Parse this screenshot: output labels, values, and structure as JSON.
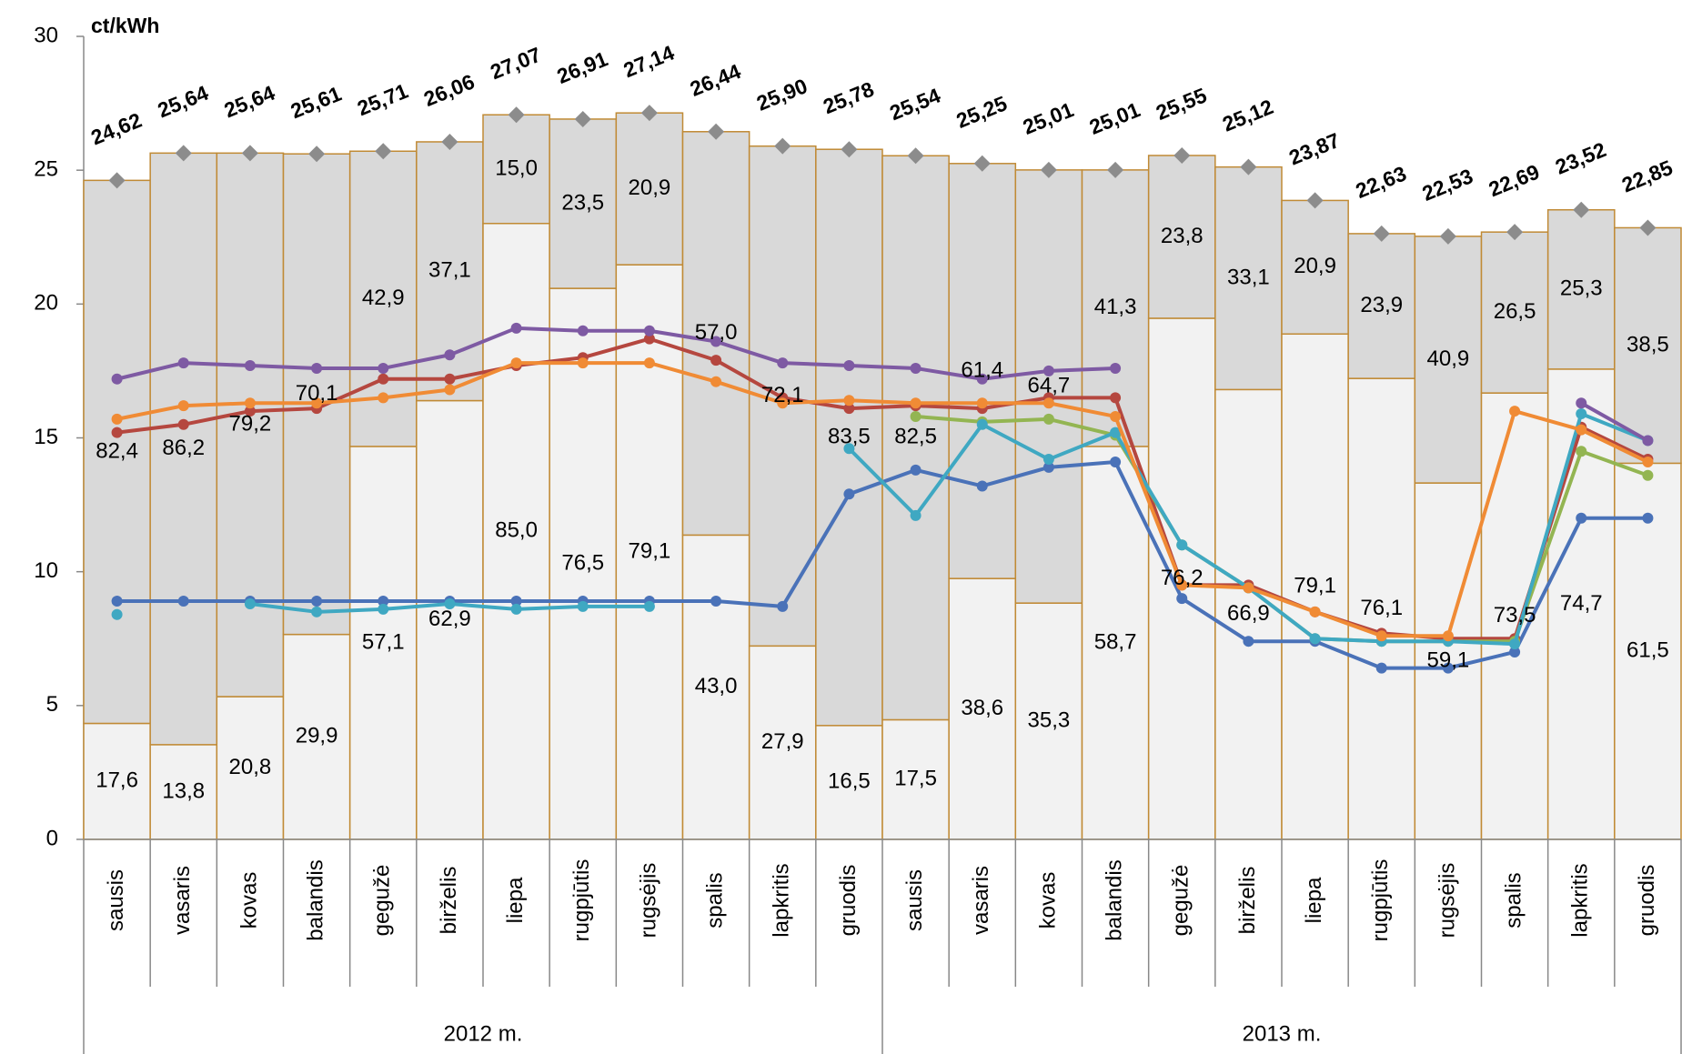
{
  "chart_data": {
    "type": "bar_line",
    "y_label": "ct/kWh",
    "ylim": [
      0,
      30
    ],
    "yticks": [
      0,
      5,
      10,
      15,
      20,
      25,
      30
    ],
    "categories": [
      "sausis",
      "vasaris",
      "kovas",
      "balandis",
      "gegužė",
      "birželis",
      "liepa",
      "rugpjūtis",
      "rugsėjis",
      "spalis",
      "lapkritis",
      "gruodis",
      "sausis",
      "vasaris",
      "kovas",
      "balandis",
      "gegužė",
      "birželis",
      "liepa",
      "rugpjūtis",
      "rugsėjis",
      "spalis",
      "lapkritis",
      "gruodis"
    ],
    "groups": [
      "2012 m.",
      "2013 m."
    ],
    "bars": {
      "edge_color": "#c08a35",
      "totals": {
        "color": "#8c8c8c",
        "values": [
          24.62,
          25.64,
          25.64,
          25.61,
          25.71,
          26.06,
          27.07,
          26.91,
          27.14,
          26.44,
          25.9,
          25.78,
          25.54,
          25.25,
          25.01,
          25.01,
          25.55,
          25.12,
          23.87,
          22.63,
          22.53,
          22.69,
          23.52,
          22.85
        ],
        "value_labels": [
          "24,62",
          "25,64",
          "25,64",
          "25,61",
          "25,71",
          "26,06",
          "27,07",
          "26,91",
          "27,14",
          "26,44",
          "25,90",
          "25,78",
          "25,54",
          "25,25",
          "25,01",
          "25,01",
          "25,55",
          "25,12",
          "23,87",
          "22,63",
          "22,53",
          "22,69",
          "23,52",
          "22,85"
        ]
      },
      "lower": {
        "color": "#f2f2f2",
        "values": [
          17.6,
          13.8,
          20.8,
          29.9,
          57.1,
          62.9,
          85.0,
          76.5,
          79.1,
          43.0,
          27.9,
          16.5,
          17.5,
          38.6,
          35.3,
          58.7,
          76.2,
          66.9,
          79.1,
          76.1,
          59.1,
          73.5,
          74.7,
          61.5
        ],
        "value_labels": [
          "17,6",
          "13,8",
          "20,8",
          "29,9",
          "57,1",
          "62,9",
          "85,0",
          "76,5",
          "79,1",
          "43,0",
          "27,9",
          "16,5",
          "17,5",
          "38,6",
          "35,3",
          "58,7",
          "76,2",
          "66,9",
          "79,1",
          "76,1",
          "59,1",
          "73,5",
          "74,7",
          "61,5"
        ]
      },
      "upper": {
        "color": "#d9d9d9",
        "values": [
          82.4,
          86.2,
          79.2,
          70.1,
          42.9,
          37.1,
          15.0,
          23.5,
          20.9,
          57.0,
          72.1,
          83.5,
          82.5,
          61.4,
          64.7,
          41.3,
          23.8,
          33.1,
          20.9,
          23.9,
          40.9,
          26.5,
          25.3,
          38.5
        ],
        "value_labels": [
          "82,4",
          "86,2",
          "79,2",
          "70,1",
          "42,9",
          "37,1",
          "15,0",
          "23,5",
          "20,9",
          "57,0",
          "72,1",
          "83,5",
          "82,5",
          "61,4",
          "64,7",
          "41,3",
          "23,8",
          "33,1",
          "20,9",
          "23,9",
          "40,9",
          "26,5",
          "25,3",
          "38,5"
        ]
      }
    },
    "series": [
      {
        "color": "#4a72b8",
        "values": [
          8.9,
          8.9,
          8.9,
          8.9,
          8.9,
          8.9,
          8.9,
          8.9,
          8.9,
          8.9,
          8.7,
          12.9,
          13.8,
          13.2,
          13.9,
          14.1,
          9.0,
          7.4,
          7.4,
          6.4,
          6.4,
          7.0,
          12.0,
          12.0
        ]
      },
      {
        "color": "#b5473f",
        "values": [
          15.2,
          15.5,
          16.0,
          16.1,
          17.2,
          17.2,
          17.7,
          18.0,
          18.7,
          17.9,
          16.5,
          16.1,
          16.2,
          16.1,
          16.5,
          16.5,
          9.5,
          9.5,
          8.5,
          7.7,
          7.5,
          7.5,
          15.4,
          14.2
        ]
      },
      {
        "color": "#93b552",
        "values": [
          null,
          null,
          null,
          null,
          null,
          null,
          null,
          null,
          null,
          null,
          null,
          null,
          15.8,
          15.6,
          15.7,
          15.1,
          11.0,
          9.4,
          7.5,
          7.4,
          7.4,
          7.4,
          14.5,
          13.6
        ]
      },
      {
        "color": "#3fa8c2",
        "values": [
          8.4,
          null,
          8.8,
          8.5,
          8.6,
          8.8,
          8.6,
          8.7,
          8.7,
          null,
          null,
          14.6,
          12.1,
          15.5,
          14.2,
          15.2,
          11.0,
          9.4,
          7.5,
          7.4,
          7.4,
          7.3,
          15.9,
          14.9
        ]
      },
      {
        "color": "#f08b35",
        "values": [
          15.7,
          16.2,
          16.3,
          16.3,
          16.5,
          16.8,
          17.8,
          17.8,
          17.8,
          17.1,
          16.3,
          16.4,
          16.3,
          16.3,
          16.3,
          15.8,
          9.5,
          9.4,
          8.5,
          7.6,
          7.6,
          16.0,
          15.3,
          14.1
        ]
      },
      {
        "color": "#7e5aa3",
        "values": [
          17.2,
          17.8,
          17.7,
          17.6,
          17.6,
          18.1,
          19.1,
          19.0,
          19.0,
          18.6,
          17.8,
          17.7,
          17.6,
          17.2,
          17.5,
          17.6,
          null,
          null,
          null,
          null,
          null,
          null,
          16.3,
          14.9
        ]
      }
    ]
  }
}
